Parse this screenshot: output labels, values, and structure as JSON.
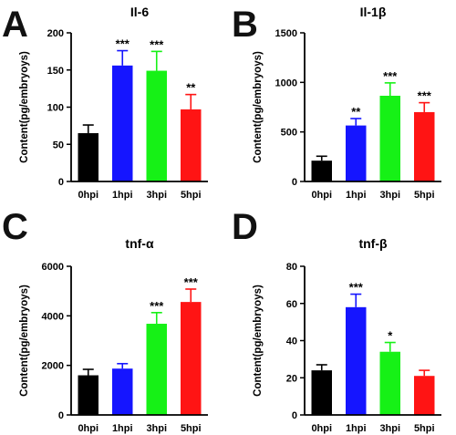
{
  "chart_data": [
    {
      "panel_letter": "A",
      "type": "bar",
      "title": "Il-6",
      "ylabel": "Content(pg/embryoys)",
      "xlabel": "",
      "categories": [
        "0hpi",
        "1hpi",
        "3hpi",
        "5hpi"
      ],
      "values": [
        65,
        156,
        149,
        97
      ],
      "errors": [
        11,
        20,
        26,
        20
      ],
      "significance": [
        "",
        "***",
        "***",
        "**"
      ],
      "colors": [
        "#000000",
        "#1515ff",
        "#16f116",
        "#ff1414"
      ],
      "ylim": [
        0,
        200
      ],
      "yticks": [
        0,
        50,
        100,
        150,
        200
      ]
    },
    {
      "panel_letter": "B",
      "type": "bar",
      "title": "Il-1β",
      "ylabel": "Content(pg/embryoys)",
      "xlabel": "",
      "categories": [
        "0hpi",
        "1hpi",
        "3hpi",
        "5hpi"
      ],
      "values": [
        210,
        565,
        865,
        700
      ],
      "errors": [
        45,
        70,
        130,
        95
      ],
      "significance": [
        "",
        "**",
        "***",
        "***"
      ],
      "colors": [
        "#000000",
        "#1515ff",
        "#16f116",
        "#ff1414"
      ],
      "ylim": [
        0,
        1500
      ],
      "yticks": [
        0,
        500,
        1000,
        1500
      ]
    },
    {
      "panel_letter": "C",
      "type": "bar",
      "title": "tnf-α",
      "ylabel": "Content(pg/embryoys)",
      "xlabel": "",
      "categories": [
        "0hpi",
        "1hpi",
        "3hpi",
        "5hpi"
      ],
      "values": [
        1600,
        1870,
        3680,
        4560
      ],
      "errors": [
        240,
        200,
        450,
        520
      ],
      "significance": [
        "",
        "",
        "***",
        "***"
      ],
      "colors": [
        "#000000",
        "#1515ff",
        "#16f116",
        "#ff1414"
      ],
      "ylim": [
        0,
        6000
      ],
      "yticks": [
        0,
        2000,
        4000,
        6000
      ]
    },
    {
      "panel_letter": "D",
      "type": "bar",
      "title": "tnf-β",
      "ylabel": "Content(pg/embryoys)",
      "xlabel": "",
      "categories": [
        "0hpi",
        "1hpi",
        "3hpi",
        "5hpi"
      ],
      "values": [
        24,
        58,
        34,
        21
      ],
      "errors": [
        3,
        7,
        5,
        3
      ],
      "significance": [
        "",
        "***",
        "*",
        ""
      ],
      "colors": [
        "#000000",
        "#1515ff",
        "#16f116",
        "#ff1414"
      ],
      "ylim": [
        0,
        80
      ],
      "yticks": [
        0,
        20,
        40,
        60,
        80
      ]
    }
  ]
}
